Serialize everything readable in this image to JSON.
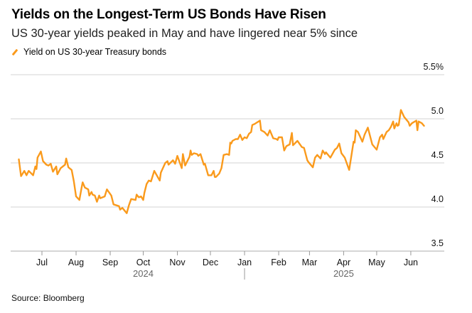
{
  "header": {
    "title": "Yields on the Longest-Term US Bonds Have Risen",
    "subtitle": "US 30-year yields peaked in May and have lingered near 5% since"
  },
  "footer": {
    "source": "Source: Bloomberg"
  },
  "colors": {
    "series": "#fa9a1c",
    "grid": "#e2e2e2"
  },
  "chart_data": {
    "type": "line",
    "title": "Yields on the Longest-Term US Bonds Have Risen",
    "subtitle": "US 30-year yields peaked in May and have lingered near 5% since",
    "xlabel": "",
    "ylabel": "",
    "x_units": "days since 2024-07-01",
    "xlim": [
      -22,
      348
    ],
    "ylim": [
      3.5,
      5.5
    ],
    "grid": true,
    "legend_position": "top-left",
    "y_ticks": [
      {
        "value": 5.5,
        "label": "5.5%"
      },
      {
        "value": 5.0,
        "label": "5.0"
      },
      {
        "value": 4.5,
        "label": "4.5"
      },
      {
        "value": 4.0,
        "label": "4.0"
      },
      {
        "value": 3.5,
        "label": "3.5"
      }
    ],
    "x_ticks": [
      {
        "value": 0,
        "label": "Jul"
      },
      {
        "value": 31,
        "label": "Aug"
      },
      {
        "value": 62,
        "label": "Sep"
      },
      {
        "value": 92,
        "label": "Oct"
      },
      {
        "value": 123,
        "label": "Nov"
      },
      {
        "value": 153,
        "label": "Dec"
      },
      {
        "value": 184,
        "label": "Jan"
      },
      {
        "value": 215,
        "label": "Feb"
      },
      {
        "value": 243,
        "label": "Mar"
      },
      {
        "value": 274,
        "label": "Apr"
      },
      {
        "value": 304,
        "label": "May"
      },
      {
        "value": 335,
        "label": "Jun"
      }
    ],
    "year_labels": [
      {
        "value": 92,
        "label": "2024"
      },
      {
        "value": 274,
        "label": "2025"
      }
    ],
    "year_divider": 184,
    "series": [
      {
        "name": "Yield on US 30-year Treasury bonds",
        "points": [
          [
            -21,
            4.54
          ],
          [
            -19,
            4.35
          ],
          [
            -16,
            4.41
          ],
          [
            -14,
            4.36
          ],
          [
            -12,
            4.41
          ],
          [
            -8,
            4.36
          ],
          [
            -6,
            4.46
          ],
          [
            -5,
            4.43
          ],
          [
            -4,
            4.56
          ],
          [
            -1,
            4.63
          ],
          [
            1,
            4.52
          ],
          [
            4,
            4.48
          ],
          [
            6,
            4.47
          ],
          [
            8,
            4.49
          ],
          [
            10,
            4.4
          ],
          [
            13,
            4.46
          ],
          [
            14,
            4.37
          ],
          [
            17,
            4.44
          ],
          [
            21,
            4.48
          ],
          [
            22,
            4.55
          ],
          [
            24,
            4.45
          ],
          [
            27,
            4.42
          ],
          [
            29,
            4.29
          ],
          [
            31,
            4.12
          ],
          [
            34,
            4.08
          ],
          [
            36,
            4.22
          ],
          [
            37,
            4.28
          ],
          [
            39,
            4.22
          ],
          [
            42,
            4.2
          ],
          [
            43,
            4.13
          ],
          [
            45,
            4.17
          ],
          [
            46,
            4.14
          ],
          [
            48,
            4.13
          ],
          [
            50,
            4.06
          ],
          [
            52,
            4.13
          ],
          [
            53,
            4.1
          ],
          [
            57,
            4.12
          ],
          [
            59,
            4.2
          ],
          [
            63,
            4.13
          ],
          [
            65,
            4.03
          ],
          [
            70,
            4.01
          ],
          [
            71,
            3.97
          ],
          [
            73,
            3.99
          ],
          [
            77,
            3.93
          ],
          [
            79,
            4.02
          ],
          [
            81,
            4.09
          ],
          [
            85,
            4.08
          ],
          [
            86,
            4.14
          ],
          [
            88,
            4.11
          ],
          [
            90,
            4.12
          ],
          [
            92,
            4.08
          ],
          [
            93,
            4.16
          ],
          [
            95,
            4.26
          ],
          [
            97,
            4.3
          ],
          [
            99,
            4.29
          ],
          [
            102,
            4.41
          ],
          [
            107,
            4.3
          ],
          [
            108,
            4.39
          ],
          [
            112,
            4.5
          ],
          [
            114,
            4.52
          ],
          [
            115,
            4.48
          ],
          [
            119,
            4.53
          ],
          [
            121,
            4.49
          ],
          [
            123,
            4.58
          ],
          [
            127,
            4.44
          ],
          [
            128,
            4.6
          ],
          [
            130,
            4.47
          ],
          [
            134,
            4.57
          ],
          [
            135,
            4.64
          ],
          [
            136,
            4.59
          ],
          [
            138,
            4.61
          ],
          [
            141,
            4.6
          ],
          [
            142,
            4.58
          ],
          [
            144,
            4.6
          ],
          [
            147,
            4.48
          ],
          [
            148,
            4.49
          ],
          [
            151,
            4.36
          ],
          [
            154,
            4.36
          ],
          [
            156,
            4.41
          ],
          [
            157,
            4.34
          ],
          [
            158,
            4.34
          ],
          [
            161,
            4.38
          ],
          [
            163,
            4.44
          ],
          [
            165,
            4.59
          ],
          [
            168,
            4.6
          ],
          [
            170,
            4.59
          ],
          [
            171,
            4.73
          ],
          [
            172,
            4.72
          ],
          [
            173,
            4.75
          ],
          [
            176,
            4.77
          ],
          [
            178,
            4.77
          ],
          [
            180,
            4.82
          ],
          [
            182,
            4.76
          ],
          [
            184,
            4.79
          ],
          [
            186,
            4.78
          ],
          [
            188,
            4.83
          ],
          [
            190,
            4.85
          ],
          [
            191,
            4.93
          ],
          [
            193,
            4.94
          ],
          [
            198,
            4.98
          ],
          [
            199,
            4.87
          ],
          [
            202,
            4.85
          ],
          [
            205,
            4.81
          ],
          [
            207,
            4.87
          ],
          [
            210,
            4.78
          ],
          [
            213,
            4.77
          ],
          [
            214,
            4.76
          ],
          [
            215,
            4.79
          ],
          [
            218,
            4.79
          ],
          [
            220,
            4.64
          ],
          [
            222,
            4.69
          ],
          [
            225,
            4.71
          ],
          [
            227,
            4.84
          ],
          [
            228,
            4.7
          ],
          [
            232,
            4.75
          ],
          [
            236,
            4.68
          ],
          [
            238,
            4.67
          ],
          [
            241,
            4.53
          ],
          [
            242,
            4.51
          ],
          [
            246,
            4.45
          ],
          [
            248,
            4.56
          ],
          [
            250,
            4.59
          ],
          [
            253,
            4.55
          ],
          [
            255,
            4.64
          ],
          [
            257,
            4.6
          ],
          [
            258,
            4.62
          ],
          [
            262,
            4.56
          ],
          [
            266,
            4.65
          ],
          [
            268,
            4.67
          ],
          [
            270,
            4.72
          ],
          [
            272,
            4.61
          ],
          [
            275,
            4.56
          ],
          [
            279,
            4.42
          ],
          [
            283,
            4.74
          ],
          [
            284,
            4.73
          ],
          [
            285,
            4.87
          ],
          [
            287,
            4.85
          ],
          [
            291,
            4.74
          ],
          [
            293,
            4.82
          ],
          [
            296,
            4.9
          ],
          [
            300,
            4.71
          ],
          [
            304,
            4.65
          ],
          [
            307,
            4.79
          ],
          [
            309,
            4.82
          ],
          [
            310,
            4.77
          ],
          [
            313,
            4.85
          ],
          [
            315,
            4.87
          ],
          [
            317,
            4.91
          ],
          [
            319,
            4.97
          ],
          [
            320,
            4.89
          ],
          [
            322,
            4.95
          ],
          [
            323,
            4.92
          ],
          [
            324,
            4.93
          ],
          [
            326,
            5.1
          ],
          [
            329,
            5.02
          ],
          [
            331,
            4.99
          ],
          [
            333,
            4.96
          ],
          [
            334,
            4.92
          ],
          [
            336,
            4.95
          ],
          [
            340,
            4.98
          ],
          [
            341,
            4.87
          ],
          [
            342,
            4.97
          ],
          [
            345,
            4.95
          ],
          [
            347,
            4.92
          ]
        ]
      }
    ]
  }
}
